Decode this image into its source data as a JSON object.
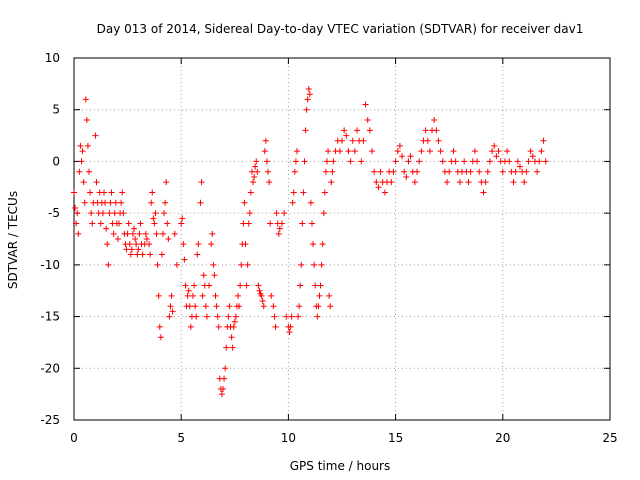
{
  "chart_data": {
    "type": "scatter",
    "title": "Day 013 of 2014, Sidereal Day-to-day VTEC variation (SDTVAR) for receiver dav1",
    "xlabel": "GPS time / hours",
    "ylabel": "SDTVAR / TECUs",
    "xlim": [
      0,
      25
    ],
    "ylim": [
      -25,
      10
    ],
    "xticks": [
      0,
      5,
      10,
      15,
      20,
      25
    ],
    "xtick_labels": [
      "0",
      "5",
      "10",
      "15",
      "20",
      "25"
    ],
    "yticks": [
      -25,
      -20,
      -15,
      -10,
      -5,
      0,
      5,
      10
    ],
    "ytick_labels": [
      "-25",
      "-20",
      "-15",
      "-10",
      "-5",
      "0",
      "5",
      "10"
    ],
    "grid": true,
    "marker": "+",
    "color": "#ff0000",
    "series": [
      {
        "name": "dav1",
        "points": [
          [
            0.0,
            -3
          ],
          [
            0.05,
            -4.5
          ],
          [
            0.1,
            -6
          ],
          [
            0.15,
            -5
          ],
          [
            0.2,
            -7
          ],
          [
            0.25,
            -1
          ],
          [
            0.3,
            1.5
          ],
          [
            0.35,
            0
          ],
          [
            0.4,
            1
          ],
          [
            0.45,
            -2
          ],
          [
            0.5,
            -4
          ],
          [
            0.55,
            6
          ],
          [
            0.6,
            4
          ],
          [
            0.65,
            1.5
          ],
          [
            0.7,
            -1
          ],
          [
            0.75,
            -3
          ],
          [
            0.8,
            -5
          ],
          [
            0.85,
            -6
          ],
          [
            0.9,
            -4
          ],
          [
            1.0,
            2.5
          ],
          [
            1.05,
            -2
          ],
          [
            1.1,
            -4
          ],
          [
            1.15,
            -5
          ],
          [
            1.2,
            -3
          ],
          [
            1.25,
            -6
          ],
          [
            1.3,
            -4
          ],
          [
            1.35,
            -5
          ],
          [
            1.4,
            -3
          ],
          [
            1.45,
            -4
          ],
          [
            1.5,
            -6.5
          ],
          [
            1.55,
            -8
          ],
          [
            1.6,
            -10
          ],
          [
            1.65,
            -5
          ],
          [
            1.7,
            -4
          ],
          [
            1.75,
            -3
          ],
          [
            1.8,
            -6
          ],
          [
            1.85,
            -7
          ],
          [
            1.9,
            -5
          ],
          [
            1.95,
            -4
          ],
          [
            2.0,
            -6
          ],
          [
            2.05,
            -7.5
          ],
          [
            2.1,
            -6
          ],
          [
            2.15,
            -5
          ],
          [
            2.2,
            -4
          ],
          [
            2.25,
            -3
          ],
          [
            2.3,
            -5
          ],
          [
            2.35,
            -7
          ],
          [
            2.4,
            -8
          ],
          [
            2.45,
            -8.5
          ],
          [
            2.5,
            -7
          ],
          [
            2.55,
            -6
          ],
          [
            2.6,
            -8
          ],
          [
            2.65,
            -9
          ],
          [
            2.7,
            -8.5
          ],
          [
            2.75,
            -7
          ],
          [
            2.8,
            -6.5
          ],
          [
            2.85,
            -7.5
          ],
          [
            2.9,
            -8
          ],
          [
            2.95,
            -9
          ],
          [
            3.0,
            -8.5
          ],
          [
            3.05,
            -7
          ],
          [
            3.1,
            -6
          ],
          [
            3.15,
            -8
          ],
          [
            3.2,
            -9
          ],
          [
            3.3,
            -8
          ],
          [
            3.35,
            -7
          ],
          [
            3.4,
            -7.5
          ],
          [
            3.5,
            -8
          ],
          [
            3.55,
            -9
          ],
          [
            3.6,
            -4
          ],
          [
            3.65,
            -3
          ],
          [
            3.7,
            -5.5
          ],
          [
            3.75,
            -6
          ],
          [
            3.8,
            -5
          ],
          [
            3.85,
            -7
          ],
          [
            3.9,
            -10
          ],
          [
            3.95,
            -13
          ],
          [
            4.0,
            -16
          ],
          [
            4.05,
            -17
          ],
          [
            4.1,
            -9
          ],
          [
            4.15,
            -7
          ],
          [
            4.2,
            -5
          ],
          [
            4.25,
            -4
          ],
          [
            4.3,
            -2
          ],
          [
            4.35,
            -6
          ],
          [
            4.4,
            -7.5
          ],
          [
            4.45,
            -15
          ],
          [
            4.5,
            -14
          ],
          [
            4.55,
            -13
          ],
          [
            4.6,
            -14.5
          ],
          [
            4.7,
            -7
          ],
          [
            4.8,
            -10
          ],
          [
            5.0,
            -6
          ],
          [
            5.05,
            -5.5
          ],
          [
            5.1,
            -8
          ],
          [
            5.15,
            -9.5
          ],
          [
            5.2,
            -12
          ],
          [
            5.25,
            -14
          ],
          [
            5.3,
            -13
          ],
          [
            5.35,
            -12.5
          ],
          [
            5.4,
            -14
          ],
          [
            5.45,
            -16
          ],
          [
            5.5,
            -15
          ],
          [
            5.55,
            -13
          ],
          [
            5.6,
            -12
          ],
          [
            5.65,
            -14
          ],
          [
            5.7,
            -15
          ],
          [
            5.75,
            -9
          ],
          [
            5.8,
            -8
          ],
          [
            5.9,
            -4
          ],
          [
            5.95,
            -2
          ],
          [
            6.0,
            -13
          ],
          [
            6.05,
            -11
          ],
          [
            6.1,
            -12
          ],
          [
            6.15,
            -14
          ],
          [
            6.2,
            -15
          ],
          [
            6.3,
            -12
          ],
          [
            6.4,
            -8
          ],
          [
            6.45,
            -7
          ],
          [
            6.5,
            -10
          ],
          [
            6.55,
            -11
          ],
          [
            6.6,
            -13
          ],
          [
            6.65,
            -14
          ],
          [
            6.7,
            -15
          ],
          [
            6.75,
            -16
          ],
          [
            6.8,
            -21
          ],
          [
            6.85,
            -22
          ],
          [
            6.9,
            -22.5
          ],
          [
            6.95,
            -22
          ],
          [
            7.0,
            -21
          ],
          [
            7.05,
            -20
          ],
          [
            7.1,
            -18
          ],
          [
            7.15,
            -16
          ],
          [
            7.2,
            -15
          ],
          [
            7.25,
            -14
          ],
          [
            7.3,
            -16
          ],
          [
            7.35,
            -17
          ],
          [
            7.4,
            -18
          ],
          [
            7.45,
            -16
          ],
          [
            7.5,
            -15.5
          ],
          [
            7.55,
            -15
          ],
          [
            7.6,
            -14
          ],
          [
            7.65,
            -13
          ],
          [
            7.7,
            -14
          ],
          [
            7.75,
            -12
          ],
          [
            7.8,
            -10
          ],
          [
            7.85,
            -8
          ],
          [
            7.9,
            -6
          ],
          [
            7.95,
            -4
          ],
          [
            8.0,
            -8
          ],
          [
            8.05,
            -12
          ],
          [
            8.1,
            -10
          ],
          [
            8.15,
            -6
          ],
          [
            8.2,
            -5
          ],
          [
            8.25,
            -3
          ],
          [
            8.3,
            -1
          ],
          [
            8.35,
            -2
          ],
          [
            8.4,
            -1.5
          ],
          [
            8.45,
            -0.5
          ],
          [
            8.5,
            0
          ],
          [
            8.55,
            -1
          ],
          [
            8.6,
            -12
          ],
          [
            8.65,
            -12.5
          ],
          [
            8.7,
            -12.8
          ],
          [
            8.75,
            -13
          ],
          [
            8.8,
            -13.5
          ],
          [
            8.85,
            -14
          ],
          [
            8.9,
            1
          ],
          [
            8.95,
            2
          ],
          [
            9.0,
            0
          ],
          [
            9.05,
            -1
          ],
          [
            9.1,
            -2
          ],
          [
            9.15,
            -6
          ],
          [
            9.2,
            -13
          ],
          [
            9.3,
            -14
          ],
          [
            9.35,
            -15
          ],
          [
            9.4,
            -16
          ],
          [
            9.45,
            -5
          ],
          [
            9.5,
            -6
          ],
          [
            9.55,
            -7
          ],
          [
            9.6,
            -6.5
          ],
          [
            9.7,
            -6
          ],
          [
            9.8,
            -5
          ],
          [
            9.9,
            -15
          ],
          [
            10.0,
            -16
          ],
          [
            10.05,
            -16.5
          ],
          [
            10.1,
            -16
          ],
          [
            10.15,
            -15
          ],
          [
            10.2,
            -4
          ],
          [
            10.25,
            -3
          ],
          [
            10.3,
            -1
          ],
          [
            10.35,
            0
          ],
          [
            10.4,
            1
          ],
          [
            10.45,
            -15
          ],
          [
            10.5,
            -14
          ],
          [
            10.55,
            -12
          ],
          [
            10.6,
            -10
          ],
          [
            10.65,
            -6
          ],
          [
            10.7,
            -3
          ],
          [
            10.75,
            0
          ],
          [
            10.8,
            3
          ],
          [
            10.85,
            5
          ],
          [
            10.9,
            6
          ],
          [
            10.95,
            7
          ],
          [
            11.0,
            6.5
          ],
          [
            11.05,
            -4
          ],
          [
            11.1,
            -6
          ],
          [
            11.15,
            -8
          ],
          [
            11.2,
            -10
          ],
          [
            11.25,
            -12
          ],
          [
            11.3,
            -14
          ],
          [
            11.35,
            -15
          ],
          [
            11.4,
            -14
          ],
          [
            11.45,
            -13
          ],
          [
            11.5,
            -12
          ],
          [
            11.55,
            -10
          ],
          [
            11.6,
            -8
          ],
          [
            11.65,
            -5
          ],
          [
            11.7,
            -3
          ],
          [
            11.75,
            -1
          ],
          [
            11.8,
            0
          ],
          [
            11.85,
            1
          ],
          [
            11.9,
            -13
          ],
          [
            11.95,
            -14
          ],
          [
            12.0,
            -2
          ],
          [
            12.05,
            -1
          ],
          [
            12.1,
            0
          ],
          [
            12.2,
            1
          ],
          [
            12.3,
            2
          ],
          [
            12.4,
            1
          ],
          [
            12.5,
            2
          ],
          [
            12.6,
            3
          ],
          [
            12.7,
            2.5
          ],
          [
            12.8,
            1
          ],
          [
            12.9,
            0
          ],
          [
            13.0,
            2
          ],
          [
            13.1,
            1
          ],
          [
            13.2,
            3
          ],
          [
            13.3,
            2
          ],
          [
            13.4,
            0
          ],
          [
            13.5,
            2
          ],
          [
            13.6,
            5.5
          ],
          [
            13.7,
            4
          ],
          [
            13.8,
            3
          ],
          [
            13.9,
            1
          ],
          [
            14.0,
            -1
          ],
          [
            14.1,
            -2
          ],
          [
            14.2,
            -2.5
          ],
          [
            14.3,
            -1
          ],
          [
            14.4,
            -2
          ],
          [
            14.5,
            -3
          ],
          [
            14.6,
            -2
          ],
          [
            14.7,
            -1
          ],
          [
            14.8,
            -2
          ],
          [
            14.9,
            -1
          ],
          [
            15.0,
            0
          ],
          [
            15.1,
            1
          ],
          [
            15.2,
            1.5
          ],
          [
            15.3,
            0.5
          ],
          [
            15.4,
            -1
          ],
          [
            15.5,
            -1.5
          ],
          [
            15.6,
            0
          ],
          [
            15.7,
            0.5
          ],
          [
            15.8,
            -1
          ],
          [
            15.9,
            -2
          ],
          [
            16.0,
            -1
          ],
          [
            16.1,
            0
          ],
          [
            16.2,
            1
          ],
          [
            16.3,
            2
          ],
          [
            16.4,
            3
          ],
          [
            16.5,
            2
          ],
          [
            16.6,
            1
          ],
          [
            16.7,
            3
          ],
          [
            16.8,
            4
          ],
          [
            16.9,
            3
          ],
          [
            17.0,
            2
          ],
          [
            17.1,
            1
          ],
          [
            17.2,
            0
          ],
          [
            17.3,
            -1
          ],
          [
            17.4,
            -2
          ],
          [
            17.5,
            -1
          ],
          [
            17.6,
            0
          ],
          [
            17.7,
            1
          ],
          [
            17.8,
            0
          ],
          [
            17.9,
            -1
          ],
          [
            18.0,
            -2
          ],
          [
            18.1,
            -1
          ],
          [
            18.2,
            0
          ],
          [
            18.3,
            -1
          ],
          [
            18.4,
            -2
          ],
          [
            18.5,
            -1
          ],
          [
            18.6,
            0
          ],
          [
            18.7,
            1
          ],
          [
            18.8,
            0
          ],
          [
            18.9,
            -1
          ],
          [
            19.0,
            -2
          ],
          [
            19.1,
            -3
          ],
          [
            19.2,
            -2
          ],
          [
            19.3,
            -1
          ],
          [
            19.4,
            0
          ],
          [
            19.5,
            1
          ],
          [
            19.6,
            1.5
          ],
          [
            19.7,
            0.5
          ],
          [
            19.8,
            1
          ],
          [
            19.9,
            0
          ],
          [
            20.0,
            -1
          ],
          [
            20.1,
            0
          ],
          [
            20.2,
            1
          ],
          [
            20.3,
            0
          ],
          [
            20.4,
            -1
          ],
          [
            20.5,
            -2
          ],
          [
            20.6,
            -1
          ],
          [
            20.7,
            0
          ],
          [
            20.8,
            -0.5
          ],
          [
            20.9,
            -1
          ],
          [
            21.0,
            -2
          ],
          [
            21.1,
            -1
          ],
          [
            21.2,
            0
          ],
          [
            21.3,
            1
          ],
          [
            21.4,
            0.5
          ],
          [
            21.5,
            0
          ],
          [
            21.6,
            -1
          ],
          [
            21.7,
            0
          ],
          [
            21.8,
            1
          ],
          [
            21.9,
            2
          ],
          [
            22.0,
            0
          ]
        ]
      }
    ]
  }
}
